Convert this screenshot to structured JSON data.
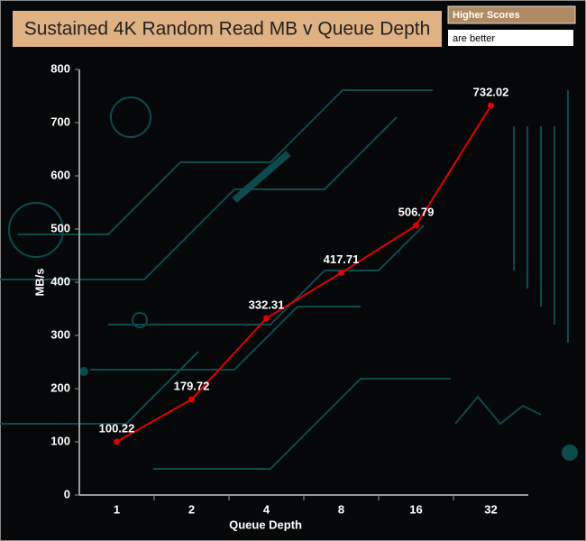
{
  "chart_data": {
    "type": "line",
    "title": "Sustained 4K Random Read MB v Queue Depth",
    "annotations": [
      "Higher Scores",
      "are better"
    ],
    "x_label": "Queue Depth",
    "y_label": "MB/s",
    "categories": [
      "1",
      "2",
      "4",
      "8",
      "16",
      "32"
    ],
    "series": [
      {
        "name": "Sustained 4K Random Read",
        "color": "#e00000",
        "values": [
          100.22,
          179.72,
          332.31,
          417.71,
          506.79,
          732.02
        ]
      }
    ],
    "ylim": [
      0,
      800
    ],
    "yticks": [
      0,
      100,
      200,
      300,
      400,
      500,
      600,
      700,
      800
    ]
  }
}
